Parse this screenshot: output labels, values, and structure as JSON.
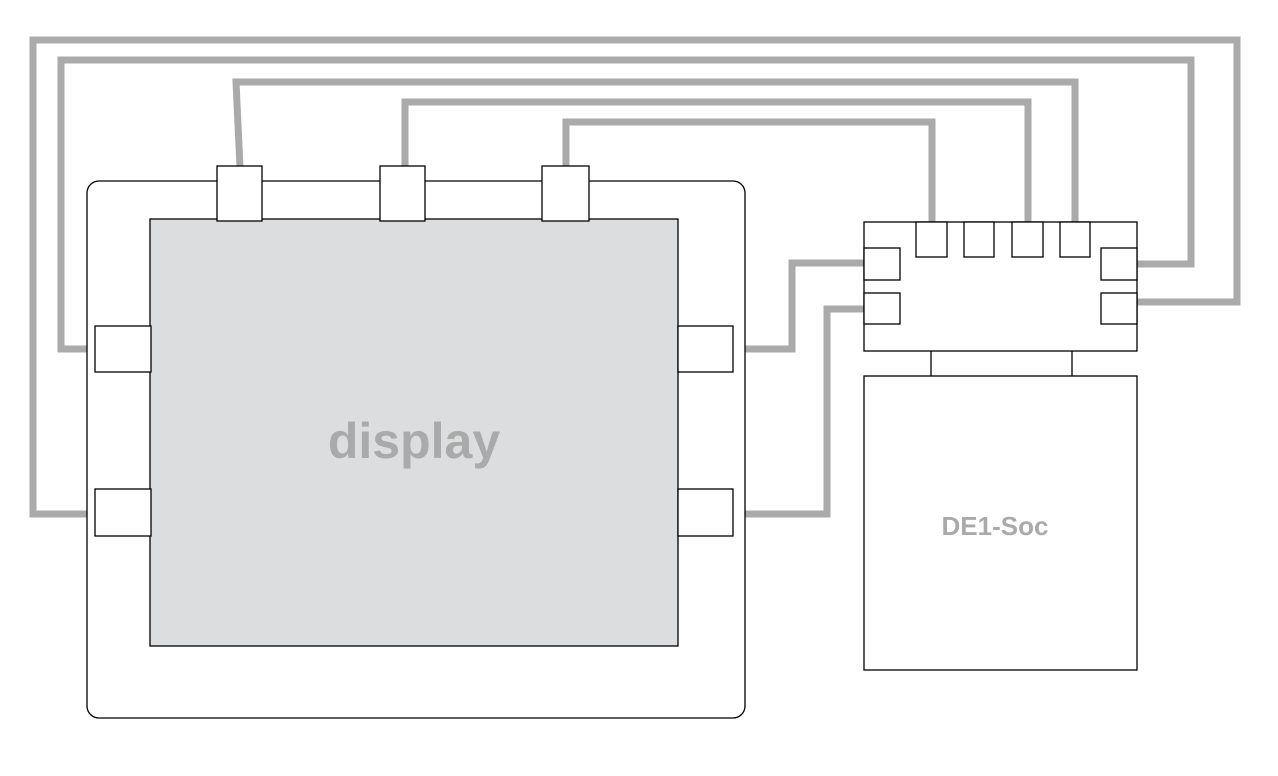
{
  "labels": {
    "display": "display",
    "board": "DE1-Soc"
  },
  "colors": {
    "wire": "#aaaaaa",
    "screen_fill": "#dcdddf",
    "label": "#aaaaaa",
    "outline": "#000000",
    "background": "#ffffff"
  }
}
